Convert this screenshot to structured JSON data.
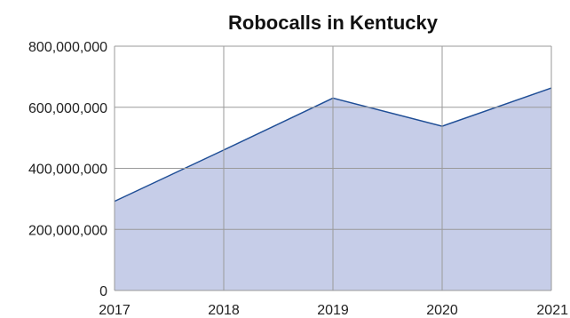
{
  "chart_data": {
    "type": "area",
    "title": "Robocalls in Kentucky",
    "xlabel": "",
    "ylabel": "",
    "x": [
      "2017",
      "2018",
      "2019",
      "2020",
      "2021"
    ],
    "y_tick_labels": [
      "0",
      "200,000,000",
      "400,000,000",
      "600,000,000",
      "800,000,000"
    ],
    "y_ticks": [
      0,
      200000000,
      400000000,
      600000000,
      800000000
    ],
    "ylim": [
      0,
      800000000
    ],
    "series": [
      {
        "values": [
          292000000,
          460000000,
          630000000,
          538000000,
          663000000
        ]
      }
    ],
    "grid": true,
    "colors": {
      "fill": "#c6cde8",
      "line": "#1f4e96",
      "grid": "#9a9a9a"
    }
  }
}
